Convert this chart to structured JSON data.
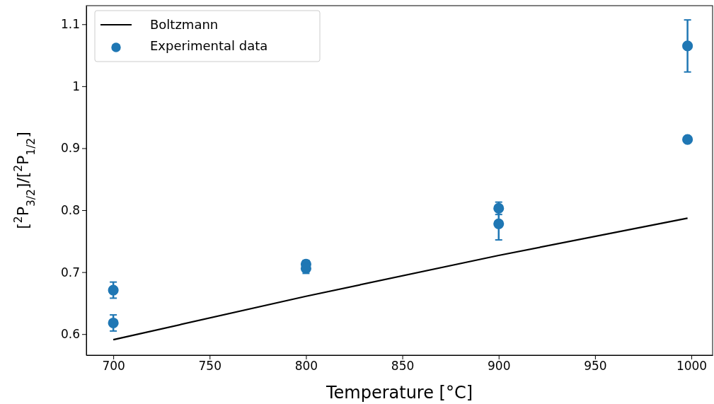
{
  "chart_data": {
    "type": "scatter",
    "xlabel": "Temperature [°C]",
    "ylabel": "[$^{2}$P$_{3/2}$]/[$^{2}$P$_{1/2}$]",
    "xlim": [
      686,
      1011
    ],
    "ylim": [
      0.566,
      1.13
    ],
    "xticks": [
      700,
      750,
      800,
      850,
      900,
      950,
      1000
    ],
    "yticks": [
      0.6,
      0.7,
      0.8,
      0.9,
      1.0,
      1.1
    ],
    "grid": false,
    "legend": "top left",
    "series": [
      {
        "name": "Boltzmann",
        "type": "line",
        "color": "#000000",
        "line_style": "solid",
        "x": [
          700,
          800,
          900,
          998
        ],
        "values": [
          0.591,
          0.661,
          0.727,
          0.787
        ]
      },
      {
        "name": "Experimental data",
        "marker": "circle",
        "color": "#1f77b4",
        "x": [
          700,
          700,
          800,
          800,
          900,
          900,
          998,
          998
        ],
        "values": [
          0.671,
          0.618,
          0.713,
          0.706,
          0.803,
          0.778,
          1.065,
          0.914
        ],
        "errors": [
          0.013,
          0.013,
          0.006,
          0.008,
          0.01,
          0.026,
          0.042,
          0.004
        ]
      }
    ]
  }
}
